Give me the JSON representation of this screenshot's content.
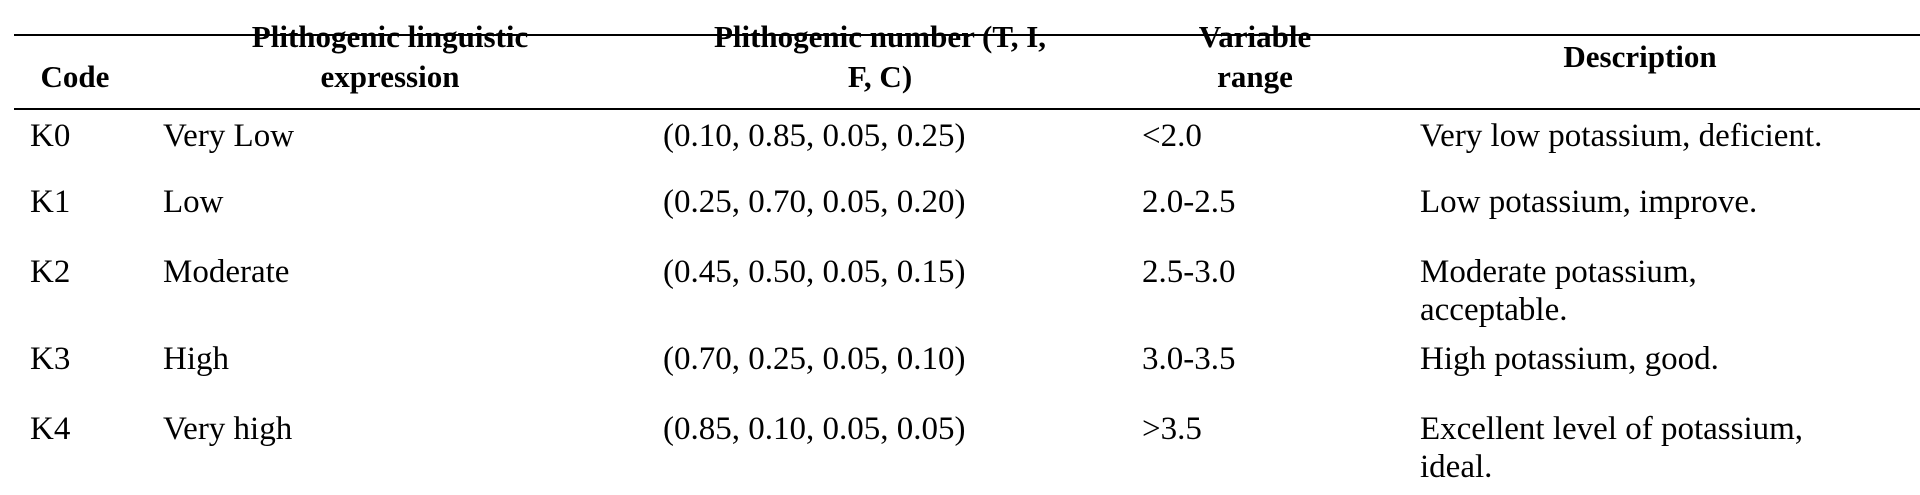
{
  "table": {
    "headers": {
      "code": "Code",
      "expression_l1": "Plithogenic linguistic",
      "expression_l2": "expression",
      "number_l1": "Plithogenic number (T, I,",
      "number_l2": "F, C)",
      "range_l1": "Variable",
      "range_l2": "range",
      "description": "Description"
    },
    "rows": [
      {
        "code": "K0",
        "expression": "Very Low",
        "number": "(0.10, 0.85, 0.05, 0.25)",
        "range": "<2.0",
        "desc_l1": "Very low potassium, deficient.",
        "desc_l2": ""
      },
      {
        "code": "K1",
        "expression": "Low",
        "number": "(0.25, 0.70, 0.05, 0.20)",
        "range": "2.0-2.5",
        "desc_l1": "Low potassium, improve.",
        "desc_l2": ""
      },
      {
        "code": "K2",
        "expression": "Moderate",
        "number": "(0.45, 0.50, 0.05, 0.15)",
        "range": "2.5-3.0",
        "desc_l1": "Moderate potassium,",
        "desc_l2": "acceptable."
      },
      {
        "code": "K3",
        "expression": "High",
        "number": "(0.70, 0.25, 0.05, 0.10)",
        "range": "3.0-3.5",
        "desc_l1": "High potassium, good.",
        "desc_l2": ""
      },
      {
        "code": "K4",
        "expression": "Very high",
        "number": "(0.85, 0.10, 0.05, 0.05)",
        "range": ">3.5",
        "desc_l1": "Excellent level of potassium,",
        "desc_l2": "ideal."
      }
    ]
  }
}
